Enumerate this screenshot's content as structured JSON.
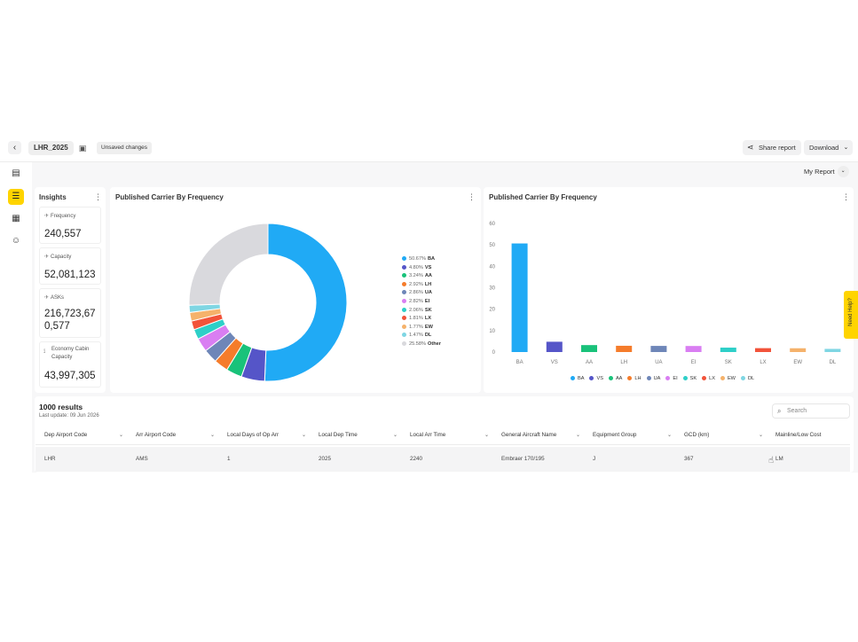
{
  "topbar": {
    "back_icon": "chevron-left-icon",
    "file_name": "LHR_2025",
    "save_icon": "save-icon",
    "unsaved": "Unsaved changes",
    "share_label": "Share report",
    "download_label": "Download"
  },
  "rail": {
    "items": [
      "filter-icon",
      "table-icon",
      "bot-icon"
    ],
    "top_icon": "panel-icon"
  },
  "report_select": "My Report",
  "insights": {
    "title": "Insights",
    "cards": [
      {
        "label": "Frequency",
        "value": "240,557"
      },
      {
        "label": "Capacity",
        "value": "52,081,123"
      },
      {
        "label": "ASKs",
        "value_line1": "216,723,67",
        "value_line2": "0,577"
      },
      {
        "label_line1": "Economy Cabin",
        "label_line2": "Capacity",
        "value": "43,997,305"
      }
    ]
  },
  "donut_panel": {
    "title": "Published Carrier By Frequency"
  },
  "bar_panel": {
    "title": "Published Carrier By Frequency"
  },
  "chart_data": [
    {
      "type": "pie",
      "title": "Published Carrier By Frequency",
      "donut": true,
      "legend_position": "right",
      "categories": [
        "BA",
        "VS",
        "AA",
        "LH",
        "UA",
        "EI",
        "SK",
        "LX",
        "EW",
        "DL",
        "Other"
      ],
      "pct_labels": [
        "50.67%",
        "4.80%",
        "3.24%",
        "2.92%",
        "2.86%",
        "2.82%",
        "2.06%",
        "1.81%",
        "1.77%",
        "1.47%",
        "25.58%"
      ],
      "values": [
        50.67,
        4.8,
        3.24,
        2.92,
        2.86,
        2.82,
        2.06,
        1.81,
        1.77,
        1.47,
        25.58
      ],
      "colors": [
        "#20aaf5",
        "#5555c8",
        "#19c27a",
        "#f57c2b",
        "#6e86b8",
        "#d97ef2",
        "#2ecfc8",
        "#f2533a",
        "#f5b26b",
        "#7fd6e3",
        "#d9d9dd"
      ]
    },
    {
      "type": "bar",
      "title": "Published Carrier By Frequency",
      "grid": false,
      "legend_position": "bottom",
      "categories": [
        "BA",
        "VS",
        "AA",
        "LH",
        "UA",
        "EI",
        "SK",
        "LX",
        "EW",
        "DL"
      ],
      "values": [
        50.67,
        4.8,
        3.24,
        2.92,
        2.86,
        2.82,
        2.06,
        1.81,
        1.77,
        1.47
      ],
      "yticks": [
        "0",
        "10",
        "20",
        "30",
        "40",
        "50",
        "60"
      ],
      "ylim": [
        0,
        60
      ],
      "colors": [
        "#20aaf5",
        "#5555c8",
        "#19c27a",
        "#f57c2b",
        "#6e86b8",
        "#d97ef2",
        "#2ecfc8",
        "#f2533a",
        "#f5b26b",
        "#7fd6e3"
      ]
    }
  ],
  "results": {
    "count": "1000 results",
    "last_update": "Last update: 09 Jun 2026",
    "search_placeholder": "Search"
  },
  "table": {
    "columns": [
      "Dep Airport Code",
      "Arr Airport Code",
      "Local Days of Op Arr",
      "Local Dep Time",
      "Local Arr Time",
      "General Aircraft Name",
      "Equipment Group",
      "GCD (km)",
      "Mainline/Low Cost"
    ],
    "rows": [
      [
        "LHR",
        "AMS",
        "1",
        "2025",
        "2240",
        "Embraer 170/195",
        "J",
        "367",
        "LM"
      ]
    ]
  },
  "help_tab": "Need Help?"
}
